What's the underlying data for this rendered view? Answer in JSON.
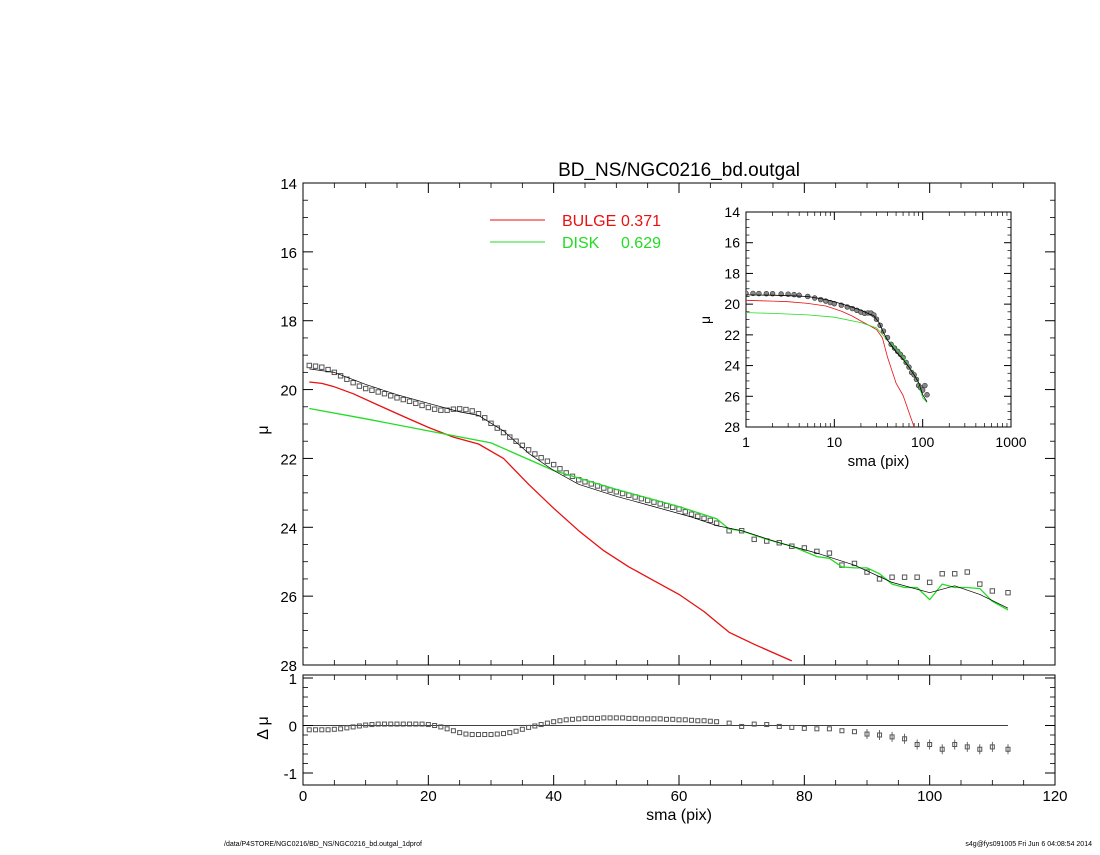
{
  "footer": {
    "left": "/data/P4STORE/NGC0216/BD_NS/NGC0216_bd.outgal_1dprof",
    "right": "s4g@fys091005  Fri Jun  6 04:08:54 2014"
  },
  "colors": {
    "bulge": "#e81010",
    "disk": "#22dd22",
    "total": "#000000",
    "data": "#555555"
  },
  "chart_data": [
    {
      "id": "main",
      "type": "line",
      "title": "BD_NS/NGC0216_bd.outgal",
      "xlabel": "",
      "ylabel": "μ",
      "xlim": [
        0,
        120
      ],
      "ylim": [
        28,
        14
      ],
      "yticks": [
        14,
        16,
        18,
        20,
        22,
        24,
        26,
        28
      ],
      "legend_position": "top-center",
      "legend": [
        {
          "label": "BULGE",
          "value": "0.371",
          "color": "#e81010"
        },
        {
          "label": "DISK",
          "value": "0.629",
          "color": "#22dd22"
        }
      ],
      "series": [
        {
          "name": "BULGE",
          "color": "#e81010",
          "width": 1.3,
          "x": [
            1,
            3,
            5,
            8,
            12,
            16,
            20,
            24,
            28,
            32,
            36,
            40,
            44,
            48,
            52,
            56,
            60,
            64,
            66,
            68,
            72,
            76,
            78
          ],
          "y": [
            19.78,
            19.82,
            19.92,
            20.12,
            20.45,
            20.78,
            21.1,
            21.38,
            21.58,
            22.0,
            22.75,
            23.45,
            24.1,
            24.68,
            25.15,
            25.55,
            25.95,
            26.45,
            26.75,
            27.05,
            27.4,
            27.72,
            27.88
          ]
        },
        {
          "name": "DISK",
          "color": "#22dd22",
          "width": 1.3,
          "x": [
            1,
            10,
            20,
            30,
            40,
            50,
            60,
            66,
            68,
            70,
            74,
            78,
            82,
            84,
            86,
            88,
            90,
            92,
            94,
            96,
            98,
            100,
            102,
            104,
            106,
            108,
            110,
            112.5
          ],
          "y": [
            20.55,
            20.85,
            21.2,
            21.55,
            22.35,
            22.9,
            23.4,
            23.75,
            24.05,
            24.1,
            24.35,
            24.55,
            24.85,
            24.9,
            25.15,
            25.18,
            25.18,
            25.35,
            25.65,
            25.75,
            25.75,
            26.1,
            25.65,
            25.75,
            25.75,
            25.78,
            26.15,
            26.4
          ]
        },
        {
          "name": "total",
          "color": "#000000",
          "width": 0.7,
          "x": [
            1,
            5,
            10,
            15,
            20,
            25,
            28,
            32,
            36,
            40,
            44,
            50,
            56,
            62,
            66,
            70,
            76,
            82,
            88,
            94,
            100,
            104,
            108,
            112.5
          ],
          "y": [
            19.4,
            19.5,
            19.85,
            20.15,
            20.4,
            20.65,
            20.75,
            21.2,
            21.85,
            22.35,
            22.75,
            23.1,
            23.4,
            23.7,
            23.95,
            24.1,
            24.45,
            24.75,
            25.1,
            25.6,
            25.9,
            25.7,
            25.95,
            26.35
          ]
        },
        {
          "name": "data",
          "color": "#555555",
          "type": "scatter",
          "x": [
            1,
            2,
            3,
            4,
            5,
            6,
            7,
            8,
            9,
            10,
            11,
            12,
            13,
            14,
            15,
            16,
            17,
            18,
            19,
            20,
            21,
            22,
            23,
            24,
            25,
            26,
            27,
            28,
            29,
            30,
            31,
            32,
            33,
            34,
            35,
            36,
            37,
            38,
            39,
            40,
            41,
            42,
            43,
            44,
            45,
            46,
            47,
            48,
            49,
            50,
            51,
            52,
            53,
            54,
            55,
            56,
            57,
            58,
            59,
            60,
            61,
            62,
            63,
            64,
            65,
            66,
            68,
            70,
            72,
            74,
            76,
            78,
            80,
            82,
            84,
            86,
            88,
            90,
            92,
            94,
            96,
            98,
            100,
            102,
            104,
            106,
            108,
            110,
            112.5
          ],
          "y": [
            19.3,
            19.32,
            19.35,
            19.42,
            19.5,
            19.6,
            19.7,
            19.8,
            19.9,
            19.97,
            20.02,
            20.07,
            20.12,
            20.18,
            20.24,
            20.29,
            20.34,
            20.4,
            20.46,
            20.52,
            20.57,
            20.6,
            20.6,
            20.57,
            20.56,
            20.58,
            20.62,
            20.7,
            20.82,
            20.98,
            21.12,
            21.25,
            21.38,
            21.5,
            21.62,
            21.75,
            21.87,
            21.98,
            22.08,
            22.18,
            22.3,
            22.42,
            22.52,
            22.62,
            22.68,
            22.74,
            22.8,
            22.86,
            22.92,
            22.97,
            23.02,
            23.07,
            23.12,
            23.17,
            23.22,
            23.27,
            23.32,
            23.37,
            23.42,
            23.47,
            23.55,
            23.62,
            23.68,
            23.74,
            23.8,
            23.88,
            24.1,
            24.1,
            24.35,
            24.4,
            24.45,
            24.55,
            24.6,
            24.7,
            24.75,
            25.1,
            25.05,
            25.3,
            25.5,
            25.45,
            25.45,
            25.45,
            25.6,
            25.35,
            25.35,
            25.3,
            25.65,
            25.85,
            25.9
          ]
        }
      ]
    },
    {
      "id": "inset",
      "type": "line",
      "xlabel": "sma (pix)",
      "ylabel": "μ",
      "xscale": "log",
      "xlim": [
        1,
        1000
      ],
      "xticks": [
        1,
        10,
        100,
        1000
      ],
      "ylim": [
        28,
        14
      ],
      "yticks": [
        14,
        16,
        18,
        20,
        22,
        24,
        26,
        28
      ],
      "series": [
        {
          "name": "BULGE",
          "color": "#e81010",
          "width": 0.8,
          "x": [
            1,
            1.5,
            2,
            3,
            5,
            8,
            12,
            16,
            20,
            25,
            30,
            35,
            40,
            50,
            60,
            70,
            80
          ],
          "y": [
            19.75,
            19.78,
            19.8,
            19.84,
            19.95,
            20.12,
            20.45,
            20.78,
            21.1,
            21.4,
            21.65,
            22.2,
            23.45,
            25.15,
            25.95,
            27.05,
            28
          ]
        },
        {
          "name": "DISK",
          "color": "#22dd22",
          "width": 0.8,
          "x": [
            1,
            2,
            5,
            10,
            20,
            30,
            40,
            50,
            60,
            70,
            80,
            90,
            100,
            112
          ],
          "y": [
            20.55,
            20.6,
            20.7,
            20.85,
            21.2,
            21.55,
            22.35,
            22.9,
            23.4,
            24.1,
            24.55,
            25.18,
            26.1,
            26.4
          ]
        },
        {
          "name": "total",
          "color": "#000000",
          "width": 0.8,
          "x": [
            1,
            2,
            3,
            5,
            8,
            10,
            15,
            20,
            25,
            28,
            32,
            36,
            40,
            50,
            60,
            70,
            80,
            90,
            100,
            112
          ],
          "y": [
            19.4,
            19.42,
            19.45,
            19.5,
            19.7,
            19.85,
            20.15,
            20.4,
            20.65,
            20.75,
            21.2,
            21.85,
            22.35,
            23.1,
            23.6,
            24.1,
            24.6,
            25.1,
            25.9,
            26.35
          ]
        },
        {
          "name": "data",
          "color": "#555555",
          "type": "scatter",
          "x": [
            1,
            1.2,
            1.4,
            1.7,
            2,
            2.5,
            3,
            3.5,
            4,
            5,
            6,
            7,
            8,
            9,
            10,
            12,
            14,
            16,
            18,
            20,
            22,
            24,
            26,
            28,
            30,
            33,
            36,
            40,
            44,
            48,
            52,
            56,
            60,
            65,
            70,
            75,
            80,
            85,
            90,
            95,
            100,
            106,
            112
          ],
          "y": [
            19.3,
            19.3,
            19.31,
            19.32,
            19.32,
            19.34,
            19.35,
            19.38,
            19.42,
            19.5,
            19.6,
            19.7,
            19.8,
            19.9,
            19.97,
            20.07,
            20.18,
            20.29,
            20.4,
            20.52,
            20.6,
            20.57,
            20.58,
            20.7,
            20.98,
            21.38,
            21.75,
            22.18,
            22.62,
            22.86,
            23.07,
            23.27,
            23.47,
            23.8,
            24.1,
            24.45,
            24.6,
            24.9,
            25.3,
            25.45,
            25.6,
            25.3,
            25.9
          ]
        }
      ]
    },
    {
      "id": "residual",
      "type": "scatter",
      "xlabel": "sma (pix)",
      "ylabel": "Δ μ",
      "xlim": [
        0,
        120
      ],
      "xticks": [
        0,
        20,
        40,
        60,
        80,
        100,
        120
      ],
      "ylim": [
        -1,
        1
      ],
      "yticks": [
        -1,
        0,
        1
      ],
      "zero_line": {
        "x": [
          1,
          112.5
        ],
        "y": 0
      },
      "series": [
        {
          "name": "residual",
          "color": "#555555",
          "x": [
            1,
            2,
            3,
            4,
            5,
            6,
            7,
            8,
            9,
            10,
            11,
            12,
            13,
            14,
            15,
            16,
            17,
            18,
            19,
            20,
            21,
            22,
            23,
            24,
            25,
            26,
            27,
            28,
            29,
            30,
            31,
            32,
            33,
            34,
            35,
            36,
            37,
            38,
            39,
            40,
            41,
            42,
            43,
            44,
            45,
            46,
            47,
            48,
            49,
            50,
            51,
            52,
            53,
            54,
            55,
            56,
            57,
            58,
            59,
            60,
            61,
            62,
            63,
            64,
            65,
            66,
            68,
            70,
            72,
            74,
            76,
            78,
            80,
            82,
            84,
            86,
            88,
            90,
            92,
            94,
            96,
            98,
            100,
            102,
            104,
            106,
            108,
            110,
            112.5
          ],
          "y": [
            -0.09,
            -0.09,
            -0.09,
            -0.09,
            -0.08,
            -0.07,
            -0.05,
            -0.03,
            -0.01,
            0.01,
            0.02,
            0.03,
            0.03,
            0.03,
            0.03,
            0.03,
            0.03,
            0.03,
            0.03,
            0.02,
            0.0,
            -0.03,
            -0.07,
            -0.11,
            -0.15,
            -0.18,
            -0.19,
            -0.19,
            -0.19,
            -0.19,
            -0.18,
            -0.17,
            -0.15,
            -0.12,
            -0.08,
            -0.04,
            -0.01,
            0.02,
            0.05,
            0.08,
            0.1,
            0.12,
            0.13,
            0.14,
            0.15,
            0.15,
            0.15,
            0.16,
            0.16,
            0.16,
            0.16,
            0.15,
            0.15,
            0.14,
            0.14,
            0.14,
            0.14,
            0.13,
            0.13,
            0.12,
            0.12,
            0.11,
            0.1,
            0.1,
            0.09,
            0.08,
            0.05,
            -0.02,
            0.03,
            0.02,
            -0.02,
            -0.04,
            -0.06,
            -0.07,
            -0.07,
            -0.11,
            -0.13,
            -0.18,
            -0.2,
            -0.24,
            -0.28,
            -0.4,
            -0.4,
            -0.5,
            -0.4,
            -0.45,
            -0.5,
            -0.45,
            -0.5
          ]
        }
      ]
    }
  ]
}
